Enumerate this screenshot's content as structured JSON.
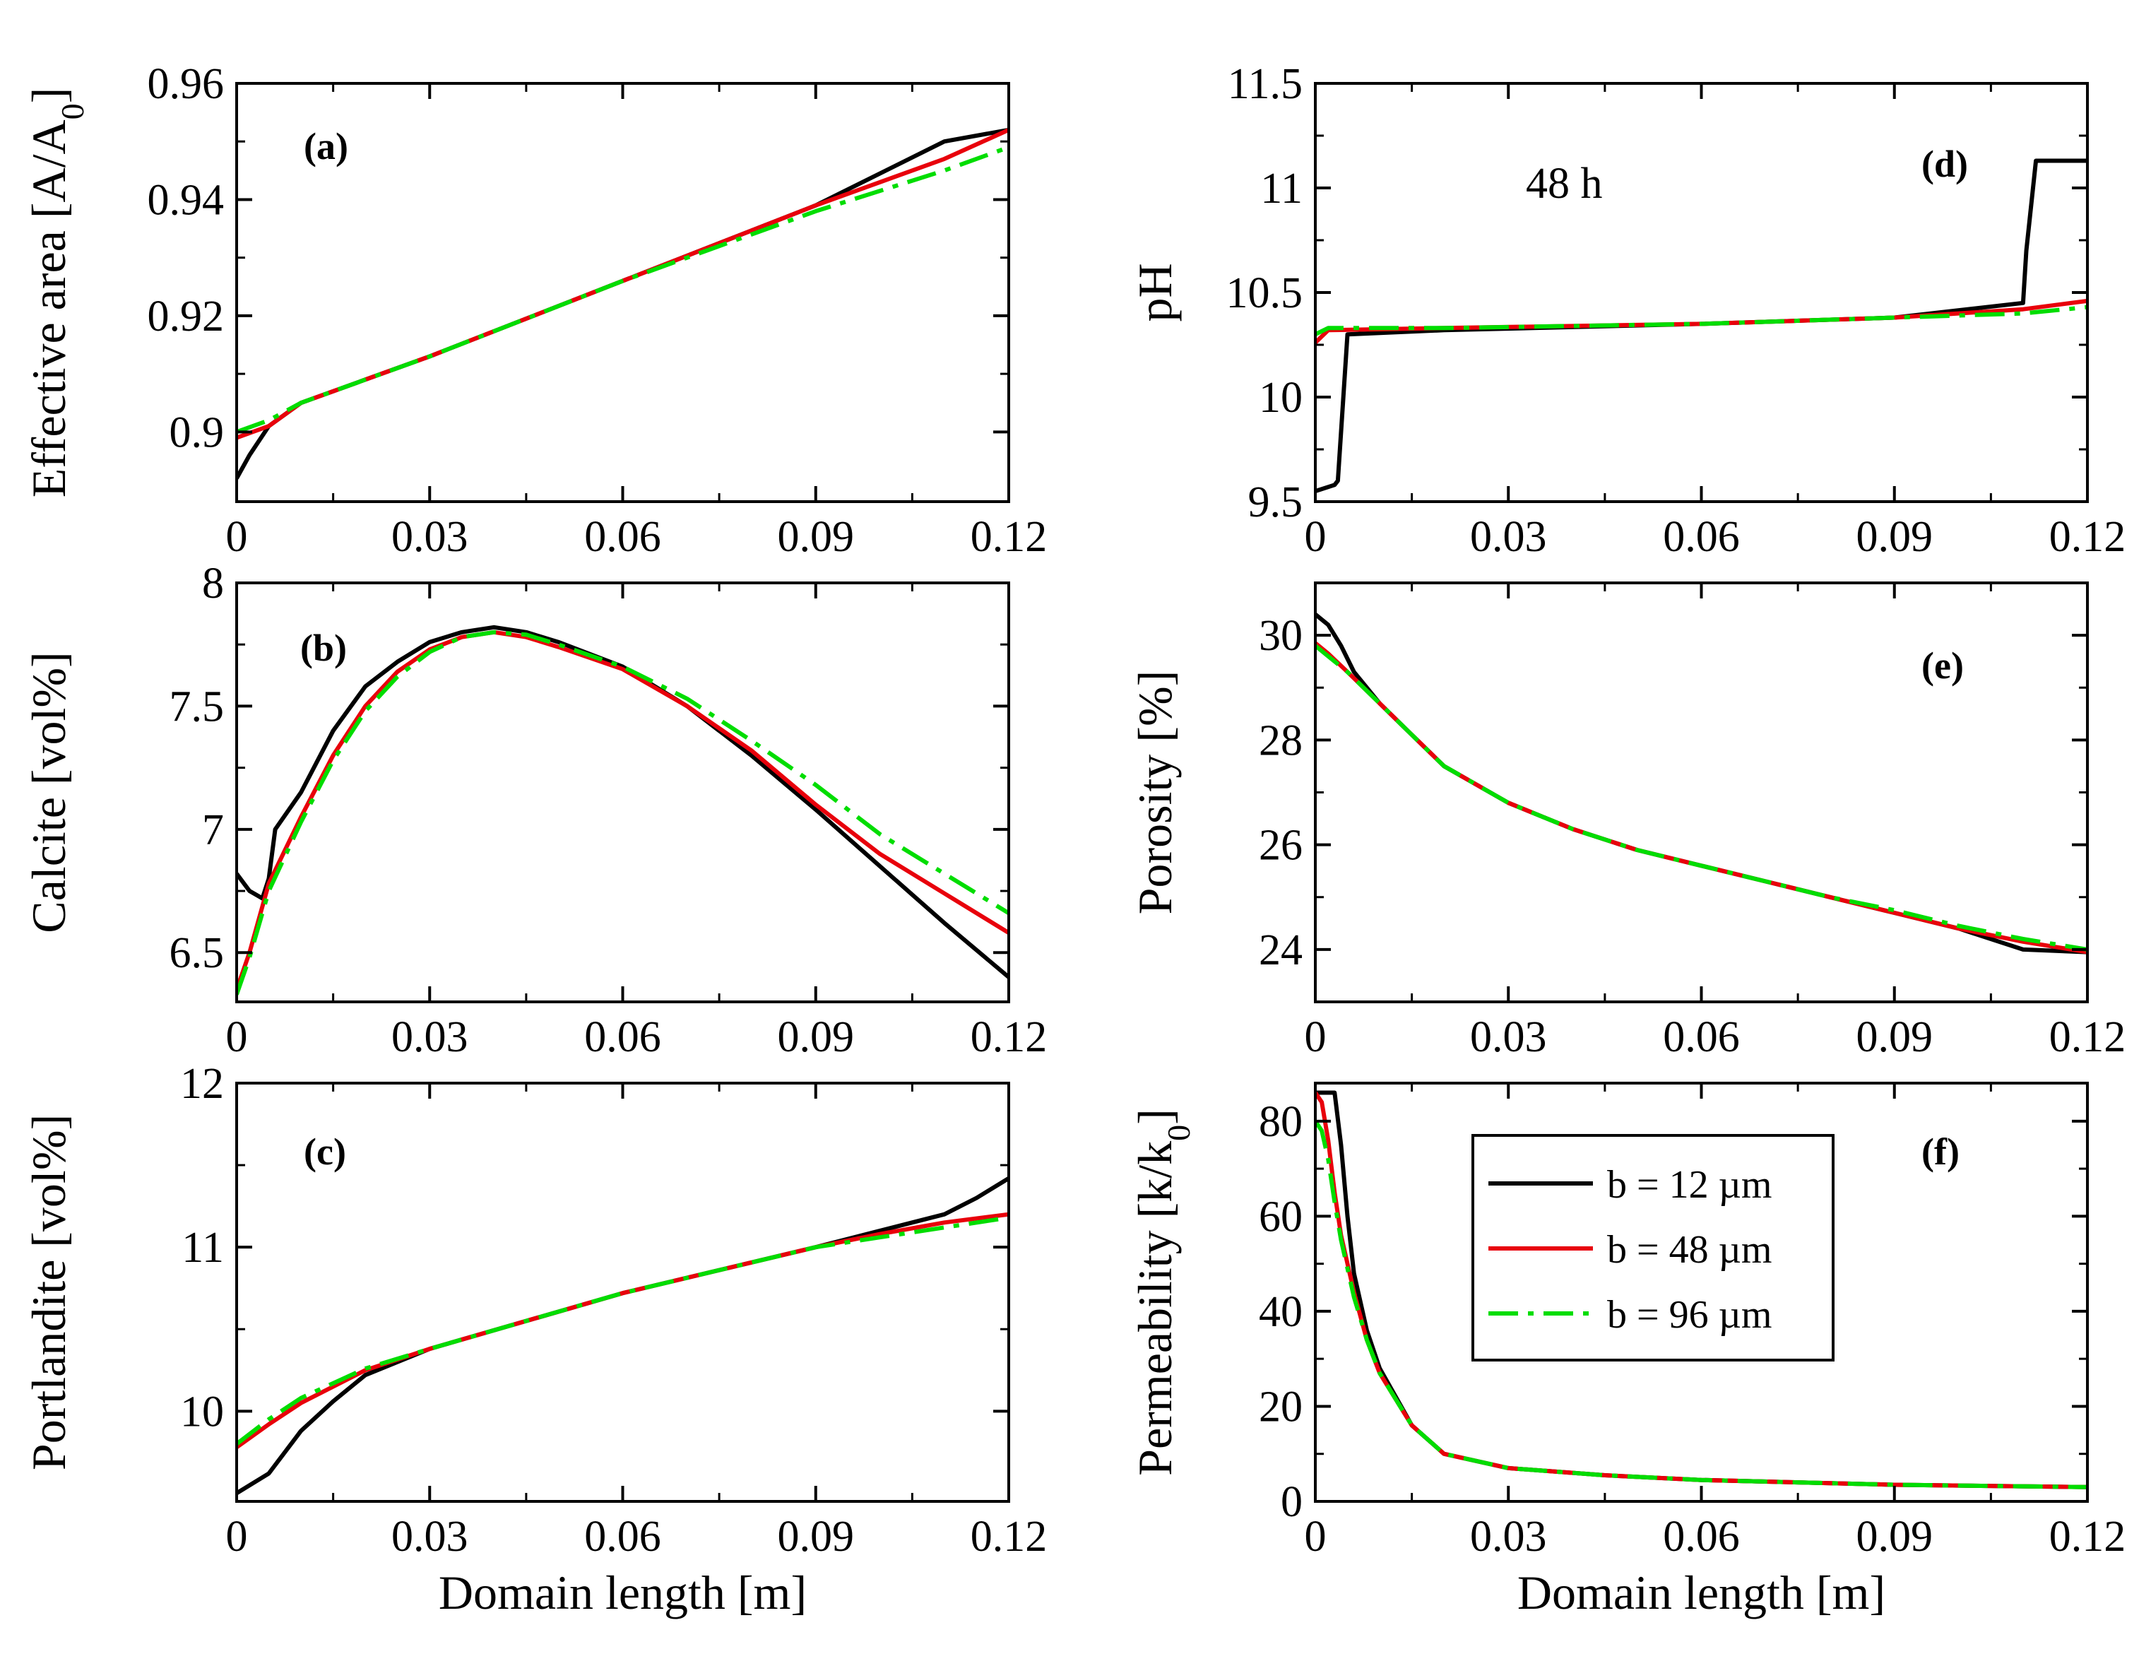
{
  "chart_data": [
    {
      "type": "line",
      "panel": "a",
      "label": "(a)",
      "ylabel": "Effective area [A/A",
      "ylabel_sub": "0",
      "ylabel_end": "]",
      "xlabel": "",
      "xlim": [
        0,
        0.12
      ],
      "ylim": [
        0.888,
        0.96
      ],
      "xticks": [
        0,
        0.03,
        0.06,
        0.09,
        0.12
      ],
      "xtick_labels": [
        "0",
        "0.03",
        "0.06",
        "0.09",
        "0.12"
      ],
      "yticks": [
        0.9,
        0.92,
        0.94,
        0.96
      ],
      "ytick_labels": [
        "0.9",
        "0.92",
        "0.94",
        "0.96"
      ],
      "series": [
        {
          "name": "b = 12 µm",
          "x": [
            0,
            0.002,
            0.005,
            0.01,
            0.03,
            0.06,
            0.09,
            0.11,
            0.12
          ],
          "y": [
            0.892,
            0.896,
            0.901,
            0.905,
            0.913,
            0.926,
            0.939,
            0.95,
            0.952
          ]
        },
        {
          "name": "b = 48 µm",
          "x": [
            0,
            0.005,
            0.01,
            0.03,
            0.06,
            0.09,
            0.11,
            0.12
          ],
          "y": [
            0.899,
            0.901,
            0.905,
            0.913,
            0.926,
            0.939,
            0.947,
            0.952
          ]
        },
        {
          "name": "b = 96 µm",
          "x": [
            0,
            0.005,
            0.01,
            0.03,
            0.06,
            0.09,
            0.11,
            0.12
          ],
          "y": [
            0.9,
            0.902,
            0.905,
            0.913,
            0.926,
            0.938,
            0.945,
            0.949
          ]
        }
      ]
    },
    {
      "type": "line",
      "panel": "b",
      "label": "(b)",
      "ylabel": "Calcite [vol%]",
      "xlabel": "",
      "xlim": [
        0,
        0.12
      ],
      "ylim": [
        6.3,
        8.0
      ],
      "xticks": [
        0,
        0.03,
        0.06,
        0.09,
        0.12
      ],
      "xtick_labels": [
        "0",
        "0.03",
        "0.06",
        "0.09",
        "0.12"
      ],
      "yticks": [
        6.5,
        7,
        7.5,
        8
      ],
      "ytick_labels": [
        "6.5",
        "7",
        "7.5",
        "8"
      ],
      "series": [
        {
          "name": "b = 12 µm",
          "x": [
            0,
            0.002,
            0.004,
            0.005,
            0.006,
            0.01,
            0.015,
            0.02,
            0.025,
            0.03,
            0.035,
            0.04,
            0.045,
            0.05,
            0.06,
            0.07,
            0.08,
            0.09,
            0.1,
            0.11,
            0.12
          ],
          "y": [
            6.82,
            6.75,
            6.72,
            6.8,
            7.0,
            7.15,
            7.4,
            7.58,
            7.68,
            7.76,
            7.8,
            7.82,
            7.8,
            7.76,
            7.66,
            7.5,
            7.3,
            7.08,
            6.85,
            6.62,
            6.4
          ]
        },
        {
          "name": "b = 48 µm",
          "x": [
            0,
            0.002,
            0.005,
            0.01,
            0.015,
            0.02,
            0.025,
            0.03,
            0.035,
            0.04,
            0.045,
            0.05,
            0.06,
            0.07,
            0.08,
            0.09,
            0.1,
            0.11,
            0.12
          ],
          "y": [
            6.35,
            6.5,
            6.78,
            7.05,
            7.3,
            7.5,
            7.64,
            7.73,
            7.78,
            7.8,
            7.78,
            7.74,
            7.65,
            7.5,
            7.32,
            7.1,
            6.9,
            6.74,
            6.58
          ]
        },
        {
          "name": "b = 96 µm",
          "x": [
            0,
            0.002,
            0.005,
            0.01,
            0.015,
            0.02,
            0.025,
            0.03,
            0.035,
            0.04,
            0.045,
            0.05,
            0.06,
            0.07,
            0.08,
            0.09,
            0.1,
            0.11,
            0.12
          ],
          "y": [
            6.33,
            6.48,
            6.75,
            7.03,
            7.28,
            7.48,
            7.62,
            7.72,
            7.78,
            7.8,
            7.79,
            7.75,
            7.66,
            7.53,
            7.36,
            7.18,
            6.98,
            6.82,
            6.66
          ]
        }
      ]
    },
    {
      "type": "line",
      "panel": "c",
      "label": "(c)",
      "ylabel": "Portlandite [vol%]",
      "xlabel": "Domain length [m]",
      "xlim": [
        0,
        0.12
      ],
      "ylim": [
        9.45,
        12
      ],
      "xticks": [
        0,
        0.03,
        0.06,
        0.09,
        0.12
      ],
      "xtick_labels": [
        "0",
        "0.03",
        "0.06",
        "0.09",
        "0.12"
      ],
      "yticks": [
        10,
        11,
        12
      ],
      "ytick_labels": [
        "10",
        "11",
        "12"
      ],
      "series": [
        {
          "name": "b = 12 µm",
          "x": [
            0,
            0.005,
            0.01,
            0.015,
            0.02,
            0.03,
            0.06,
            0.09,
            0.1,
            0.11,
            0.115,
            0.12
          ],
          "y": [
            9.5,
            9.62,
            9.88,
            10.06,
            10.22,
            10.38,
            10.72,
            11.0,
            11.1,
            11.2,
            11.3,
            11.42
          ]
        },
        {
          "name": "b = 48 µm",
          "x": [
            0,
            0.005,
            0.01,
            0.02,
            0.03,
            0.06,
            0.09,
            0.1,
            0.11,
            0.12
          ],
          "y": [
            9.78,
            9.92,
            10.05,
            10.25,
            10.38,
            10.72,
            11.0,
            11.08,
            11.15,
            11.2
          ]
        },
        {
          "name": "b = 96 µm",
          "x": [
            0,
            0.005,
            0.01,
            0.02,
            0.03,
            0.06,
            0.09,
            0.1,
            0.11,
            0.12
          ],
          "y": [
            9.8,
            9.95,
            10.08,
            10.26,
            10.38,
            10.72,
            11.0,
            11.06,
            11.12,
            11.18
          ]
        }
      ]
    },
    {
      "type": "line",
      "panel": "d",
      "label": "(d)",
      "annotation": "48 h",
      "ylabel": "pH",
      "xlabel": "",
      "xlim": [
        0,
        0.12
      ],
      "ylim": [
        9.5,
        11.5
      ],
      "xticks": [
        0,
        0.03,
        0.06,
        0.09,
        0.12
      ],
      "xtick_labels": [
        "0",
        "0.03",
        "0.06",
        "0.09",
        "0.12"
      ],
      "yticks": [
        9.5,
        10,
        10.5,
        11,
        11.5
      ],
      "ytick_labels": [
        "9.5",
        "10",
        "10.5",
        "11",
        "11.5"
      ],
      "series": [
        {
          "name": "b = 12 µm",
          "x": [
            0,
            0.003,
            0.0035,
            0.005,
            0.02,
            0.06,
            0.09,
            0.11,
            0.1105,
            0.112,
            0.12
          ],
          "y": [
            9.55,
            9.58,
            9.6,
            10.3,
            10.32,
            10.35,
            10.38,
            10.45,
            10.7,
            11.13,
            11.13
          ]
        },
        {
          "name": "b = 48 µm",
          "x": [
            0,
            0.002,
            0.02,
            0.06,
            0.09,
            0.11,
            0.12
          ],
          "y": [
            10.26,
            10.32,
            10.33,
            10.35,
            10.38,
            10.42,
            10.46
          ]
        },
        {
          "name": "b = 96 µm",
          "x": [
            0,
            0.002,
            0.02,
            0.06,
            0.09,
            0.11,
            0.12
          ],
          "y": [
            10.3,
            10.33,
            10.33,
            10.35,
            10.38,
            10.4,
            10.43
          ]
        }
      ]
    },
    {
      "type": "line",
      "panel": "e",
      "label": "(e)",
      "ylabel": "Porosity [%]",
      "xlabel": "",
      "xlim": [
        0,
        0.12
      ],
      "ylim": [
        23,
        31
      ],
      "xticks": [
        0,
        0.03,
        0.06,
        0.09,
        0.12
      ],
      "xtick_labels": [
        "0",
        "0.03",
        "0.06",
        "0.09",
        "0.12"
      ],
      "yticks": [
        24,
        26,
        28,
        30
      ],
      "ytick_labels": [
        "24",
        "26",
        "28",
        "30"
      ],
      "series": [
        {
          "name": "b = 12 µm",
          "x": [
            0,
            0.002,
            0.004,
            0.006,
            0.01,
            0.015,
            0.02,
            0.03,
            0.04,
            0.05,
            0.06,
            0.07,
            0.08,
            0.09,
            0.1,
            0.11,
            0.12
          ],
          "y": [
            30.4,
            30.2,
            29.8,
            29.3,
            28.7,
            28.1,
            27.5,
            26.8,
            26.3,
            25.9,
            25.6,
            25.3,
            25.0,
            24.7,
            24.4,
            24.0,
            23.95
          ]
        },
        {
          "name": "b = 48 µm",
          "x": [
            0,
            0.002,
            0.005,
            0.01,
            0.015,
            0.02,
            0.03,
            0.04,
            0.05,
            0.06,
            0.07,
            0.08,
            0.09,
            0.1,
            0.11,
            0.12
          ],
          "y": [
            29.85,
            29.65,
            29.3,
            28.7,
            28.1,
            27.5,
            26.8,
            26.3,
            25.9,
            25.6,
            25.3,
            25.0,
            24.7,
            24.4,
            24.15,
            23.95
          ]
        },
        {
          "name": "b = 96 µm",
          "x": [
            0,
            0.002,
            0.005,
            0.01,
            0.015,
            0.02,
            0.03,
            0.04,
            0.05,
            0.06,
            0.07,
            0.08,
            0.09,
            0.1,
            0.11,
            0.12
          ],
          "y": [
            29.8,
            29.6,
            29.3,
            28.7,
            28.1,
            27.5,
            26.8,
            26.3,
            25.9,
            25.6,
            25.3,
            25.0,
            24.75,
            24.45,
            24.2,
            24.0
          ]
        }
      ]
    },
    {
      "type": "line",
      "panel": "f",
      "label": "(f)",
      "ylabel": "Permeability [k/k",
      "ylabel_sub": "0",
      "ylabel_end": "]",
      "xlabel": "Domain length [m]",
      "xlim": [
        0,
        0.12
      ],
      "ylim": [
        0,
        88
      ],
      "xticks": [
        0,
        0.03,
        0.06,
        0.09,
        0.12
      ],
      "xtick_labels": [
        "0",
        "0.03",
        "0.06",
        "0.09",
        "0.12"
      ],
      "yticks": [
        0,
        20,
        40,
        60,
        80
      ],
      "ytick_labels": [
        "0",
        "20",
        "40",
        "60",
        "80"
      ],
      "series": [
        {
          "name": "b = 12 µm",
          "x": [
            0,
            0.003,
            0.004,
            0.005,
            0.006,
            0.008,
            0.01,
            0.015,
            0.02,
            0.03,
            0.045,
            0.06,
            0.09,
            0.12
          ],
          "y": [
            86,
            86,
            75,
            60,
            48,
            36,
            28,
            16,
            10,
            7,
            5.5,
            4.5,
            3.5,
            3
          ]
        },
        {
          "name": "b = 48 µm",
          "x": [
            0,
            0.001,
            0.002,
            0.003,
            0.004,
            0.006,
            0.008,
            0.01,
            0.015,
            0.02,
            0.03,
            0.045,
            0.06,
            0.09,
            0.12
          ],
          "y": [
            86,
            84,
            76,
            65,
            56,
            44,
            34,
            27,
            16,
            10,
            7,
            5.5,
            4.5,
            3.5,
            3
          ]
        },
        {
          "name": "b = 96 µm",
          "x": [
            0,
            0.001,
            0.002,
            0.003,
            0.004,
            0.006,
            0.008,
            0.01,
            0.015,
            0.02,
            0.03,
            0.045,
            0.06,
            0.09,
            0.12
          ],
          "y": [
            80,
            78,
            72,
            63,
            55,
            43,
            34,
            27,
            16,
            10,
            7,
            5.5,
            4.5,
            3.5,
            3
          ]
        }
      ]
    }
  ],
  "legend": {
    "items": [
      "b = 12 µm",
      "b = 48 µm",
      "b = 96 µm"
    ]
  },
  "colors": {
    "b12": "#000000",
    "b48": "#e8000b",
    "b96": "#00dd00"
  }
}
